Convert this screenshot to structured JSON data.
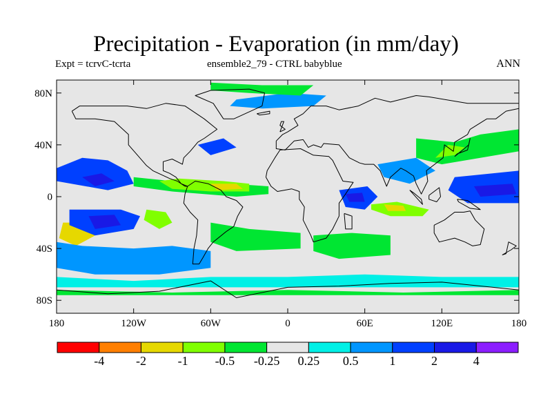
{
  "title": "Precipitation - Evaporation (in mm/day)",
  "subtitle_left": "Expt = tcrvC-tcrta",
  "subtitle_center": "ensemble2_79 - CTRL babyblue",
  "subtitle_right": "ANN",
  "colors": {
    "background": "#e6e6e6",
    "land_outline": "#000000",
    "levels": [
      "#ff0000",
      "#ff7f00",
      "#e6d800",
      "#80ff00",
      "#00e632",
      "#e6e6e6",
      "#00f0e6",
      "#0096ff",
      "#0040ff",
      "#1919e6",
      "#8c1eff"
    ]
  },
  "chart_data": {
    "type": "heatmap",
    "projection": "cylindrical-equidistant",
    "xlim": [
      -180,
      180
    ],
    "ylim": [
      -90,
      90
    ],
    "lat_ticks": [
      {
        "value": 80,
        "label": "80N"
      },
      {
        "value": 40,
        "label": "40N"
      },
      {
        "value": 0,
        "label": "0"
      },
      {
        "value": -40,
        "label": "40S"
      },
      {
        "value": -80,
        "label": "80S"
      }
    ],
    "lon_ticks": [
      {
        "value": -180,
        "label": "180"
      },
      {
        "value": -120,
        "label": "120W"
      },
      {
        "value": -60,
        "label": "60W"
      },
      {
        "value": 0,
        "label": "0"
      },
      {
        "value": 60,
        "label": "60E"
      },
      {
        "value": 120,
        "label": "120E"
      },
      {
        "value": 180,
        "label": "180"
      }
    ],
    "colorbar_labels": [
      "-4",
      "-2",
      "-1",
      "-0.5",
      "-0.25",
      "0.25",
      "0.5",
      "1",
      "2",
      "4"
    ],
    "contour_regions": [
      {
        "level": 4,
        "polygon": [
          [
            -120,
            15
          ],
          [
            -90,
            12
          ],
          [
            -45,
            10
          ],
          [
            -15,
            8
          ],
          [
            -15,
            2
          ],
          [
            -40,
            0
          ],
          [
            -90,
            4
          ],
          [
            -120,
            8
          ]
        ]
      },
      {
        "level": 3,
        "polygon": [
          [
            -100,
            12
          ],
          [
            -85,
            14
          ],
          [
            -50,
            12
          ],
          [
            -30,
            10
          ],
          [
            -30,
            4
          ],
          [
            -60,
            4
          ],
          [
            -90,
            6
          ]
        ]
      },
      {
        "level": 2,
        "polygon": [
          [
            -60,
            10
          ],
          [
            -40,
            10
          ],
          [
            -35,
            6
          ],
          [
            -55,
            5
          ]
        ]
      },
      {
        "level": 3,
        "polygon": [
          [
            65,
            -6
          ],
          [
            85,
            -4
          ],
          [
            110,
            -10
          ],
          [
            105,
            -15
          ],
          [
            80,
            -15
          ],
          [
            65,
            -10
          ]
        ]
      },
      {
        "level": 2,
        "polygon": [
          [
            75,
            -6
          ],
          [
            90,
            -7
          ],
          [
            92,
            -11
          ],
          [
            78,
            -11
          ]
        ]
      },
      {
        "level": 2,
        "polygon": [
          [
            -175,
            -20
          ],
          [
            -160,
            -20
          ],
          [
            -150,
            -30
          ],
          [
            -165,
            -38
          ],
          [
            -178,
            -32
          ]
        ]
      },
      {
        "level": 3,
        "polygon": [
          [
            -110,
            -10
          ],
          [
            -95,
            -12
          ],
          [
            -90,
            -20
          ],
          [
            -100,
            -25
          ],
          [
            -112,
            -18
          ]
        ]
      },
      {
        "level": 8,
        "polygon": [
          [
            -180,
            22
          ],
          [
            -160,
            30
          ],
          [
            -140,
            28
          ],
          [
            -125,
            20
          ],
          [
            -120,
            10
          ],
          [
            -140,
            5
          ],
          [
            -180,
            12
          ]
        ]
      },
      {
        "level": 9,
        "polygon": [
          [
            -160,
            15
          ],
          [
            -145,
            18
          ],
          [
            -135,
            12
          ],
          [
            -150,
            8
          ]
        ]
      },
      {
        "level": 8,
        "polygon": [
          [
            -170,
            -10
          ],
          [
            -130,
            -10
          ],
          [
            -115,
            -15
          ],
          [
            -120,
            -25
          ],
          [
            -150,
            -30
          ],
          [
            -170,
            -22
          ]
        ]
      },
      {
        "level": 9,
        "polygon": [
          [
            -155,
            -15
          ],
          [
            -135,
            -14
          ],
          [
            -130,
            -22
          ],
          [
            -150,
            -25
          ]
        ]
      },
      {
        "level": 7,
        "polygon": [
          [
            -180,
            -35
          ],
          [
            -160,
            -38
          ],
          [
            -120,
            -40
          ],
          [
            -90,
            -38
          ],
          [
            -60,
            -42
          ],
          [
            -60,
            -55
          ],
          [
            -100,
            -60
          ],
          [
            -150,
            -60
          ],
          [
            -180,
            -55
          ]
        ]
      },
      {
        "level": 6,
        "polygon": [
          [
            -180,
            -62
          ],
          [
            -120,
            -65
          ],
          [
            -60,
            -62
          ],
          [
            0,
            -62
          ],
          [
            60,
            -60
          ],
          [
            120,
            -62
          ],
          [
            180,
            -62
          ],
          [
            180,
            -70
          ],
          [
            -180,
            -70
          ]
        ]
      },
      {
        "level": 4,
        "polygon": [
          [
            -180,
            -72
          ],
          [
            -90,
            -74
          ],
          [
            0,
            -72
          ],
          [
            90,
            -74
          ],
          [
            180,
            -72
          ],
          [
            180,
            -76
          ],
          [
            -180,
            -76
          ]
        ]
      },
      {
        "level": 8,
        "polygon": [
          [
            40,
            5
          ],
          [
            62,
            8
          ],
          [
            70,
            0
          ],
          [
            60,
            -10
          ],
          [
            45,
            -8
          ]
        ]
      },
      {
        "level": 9,
        "polygon": [
          [
            45,
            2
          ],
          [
            58,
            3
          ],
          [
            60,
            -4
          ],
          [
            48,
            -4
          ]
        ]
      },
      {
        "level": 8,
        "polygon": [
          [
            130,
            15
          ],
          [
            180,
            20
          ],
          [
            180,
            -5
          ],
          [
            140,
            -5
          ],
          [
            125,
            5
          ]
        ]
      },
      {
        "level": 9,
        "polygon": [
          [
            145,
            8
          ],
          [
            175,
            10
          ],
          [
            178,
            2
          ],
          [
            150,
            0
          ]
        ]
      },
      {
        "level": 4,
        "polygon": [
          [
            100,
            45
          ],
          [
            130,
            42
          ],
          [
            150,
            48
          ],
          [
            180,
            52
          ],
          [
            180,
            35
          ],
          [
            150,
            30
          ],
          [
            120,
            25
          ],
          [
            100,
            30
          ]
        ]
      },
      {
        "level": 3,
        "polygon": [
          [
            115,
            30
          ],
          [
            130,
            32
          ],
          [
            138,
            38
          ],
          [
            125,
            40
          ]
        ]
      },
      {
        "level": 7,
        "polygon": [
          [
            -40,
            75
          ],
          [
            0,
            80
          ],
          [
            30,
            78
          ],
          [
            20,
            70
          ],
          [
            -20,
            68
          ],
          [
            -45,
            70
          ]
        ]
      },
      {
        "level": 4,
        "polygon": [
          [
            -60,
            88
          ],
          [
            -20,
            86
          ],
          [
            20,
            86
          ],
          [
            10,
            78
          ],
          [
            -30,
            80
          ],
          [
            -60,
            82
          ]
        ]
      },
      {
        "level": 4,
        "polygon": [
          [
            -60,
            -20
          ],
          [
            -30,
            -25
          ],
          [
            10,
            -28
          ],
          [
            10,
            -40
          ],
          [
            -40,
            -42
          ],
          [
            -60,
            -35
          ]
        ]
      },
      {
        "level": 4,
        "polygon": [
          [
            20,
            -30
          ],
          [
            50,
            -28
          ],
          [
            80,
            -30
          ],
          [
            80,
            -45
          ],
          [
            40,
            -48
          ],
          [
            20,
            -42
          ]
        ]
      },
      {
        "level": 7,
        "polygon": [
          [
            70,
            25
          ],
          [
            100,
            30
          ],
          [
            115,
            20
          ],
          [
            95,
            10
          ],
          [
            75,
            15
          ]
        ]
      },
      {
        "level": 8,
        "polygon": [
          [
            -70,
            40
          ],
          [
            -50,
            45
          ],
          [
            -40,
            38
          ],
          [
            -60,
            32
          ]
        ]
      }
    ]
  }
}
